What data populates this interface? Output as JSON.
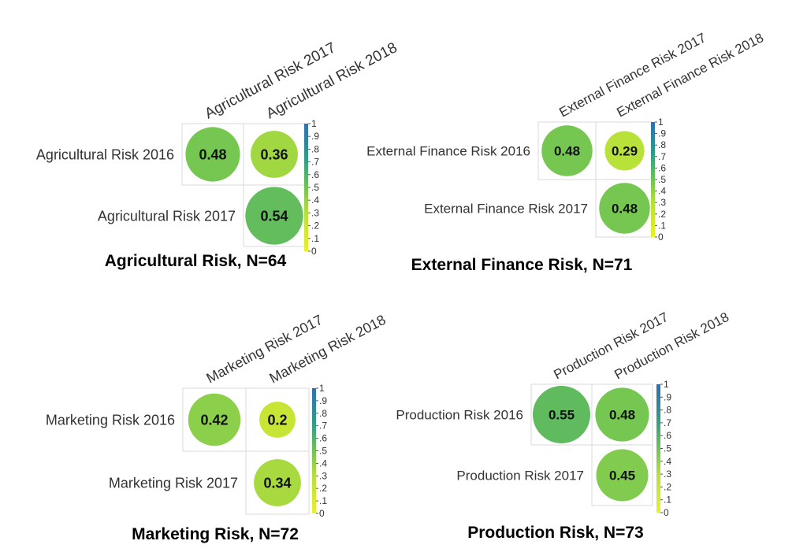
{
  "colorscale": {
    "ticks": [
      "1",
      ".9",
      ".8",
      ".7",
      ".6",
      ".5",
      ".4",
      ".3",
      ".2",
      ".1",
      "0"
    ],
    "low_color": "#e8ee2a",
    "mid_color": "#7acb4e",
    "high_color": "#2f7fb9"
  },
  "chart_data": [
    {
      "type": "heatmap",
      "title": "Agricultural Risk, N=64",
      "columns": [
        "Agricultural Risk 2017",
        "Agricultural Risk 2018"
      ],
      "rows": [
        "Agricultural Risk 2016",
        "Agricultural Risk 2017"
      ],
      "cells": [
        {
          "row": 0,
          "col": 0,
          "value": 0.48,
          "label": "0.48"
        },
        {
          "row": 0,
          "col": 1,
          "value": 0.36,
          "label": "0.36"
        },
        {
          "row": 1,
          "col": 1,
          "value": 0.54,
          "label": "0.54"
        }
      ],
      "scale_range": [
        0,
        1
      ]
    },
    {
      "type": "heatmap",
      "title": "External Finance Risk, N=71",
      "columns": [
        "External Finance Risk 2017",
        "External Finance Risk 2018"
      ],
      "rows": [
        "External Finance Risk 2016",
        "External Finance Risk 2017"
      ],
      "cells": [
        {
          "row": 0,
          "col": 0,
          "value": 0.48,
          "label": "0.48"
        },
        {
          "row": 0,
          "col": 1,
          "value": 0.29,
          "label": "0.29"
        },
        {
          "row": 1,
          "col": 1,
          "value": 0.48,
          "label": "0.48"
        }
      ],
      "scale_range": [
        0,
        1
      ]
    },
    {
      "type": "heatmap",
      "title": "Marketing Risk, N=72",
      "columns": [
        "Marketing Risk 2017",
        "Marketing Risk 2018"
      ],
      "rows": [
        "Marketing Risk 2016",
        "Marketing Risk 2017"
      ],
      "cells": [
        {
          "row": 0,
          "col": 0,
          "value": 0.42,
          "label": "0.42"
        },
        {
          "row": 0,
          "col": 1,
          "value": 0.2,
          "label": "0.2"
        },
        {
          "row": 1,
          "col": 1,
          "value": 0.34,
          "label": "0.34"
        }
      ],
      "scale_range": [
        0,
        1
      ]
    },
    {
      "type": "heatmap",
      "title": "Production Risk, N=73",
      "columns": [
        "Production Risk 2017",
        "Production Risk 2018"
      ],
      "rows": [
        "Production Risk 2016",
        "Production Risk 2017"
      ],
      "cells": [
        {
          "row": 0,
          "col": 0,
          "value": 0.55,
          "label": "0.55"
        },
        {
          "row": 0,
          "col": 1,
          "value": 0.48,
          "label": "0.48"
        },
        {
          "row": 1,
          "col": 1,
          "value": 0.45,
          "label": "0.45"
        }
      ],
      "scale_range": [
        0,
        1
      ]
    }
  ]
}
